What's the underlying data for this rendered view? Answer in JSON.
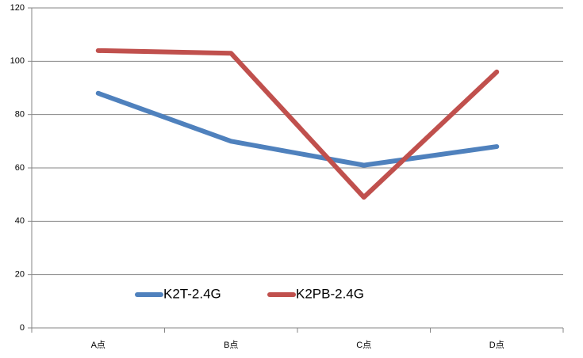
{
  "chart_data": {
    "type": "line",
    "categories": [
      "A点",
      "B点",
      "C点",
      "D点"
    ],
    "series": [
      {
        "name": "K2T-2.4G",
        "color": "#4f81bd",
        "values": [
          88,
          70,
          61,
          68
        ]
      },
      {
        "name": "K2PB-2.4G",
        "color": "#c0504d",
        "values": [
          104,
          103,
          49,
          96
        ]
      }
    ],
    "ylim": [
      0,
      120
    ],
    "yticks": [
      0,
      20,
      40,
      60,
      80,
      100,
      120
    ],
    "grid": true,
    "legend": "bottom-left"
  }
}
